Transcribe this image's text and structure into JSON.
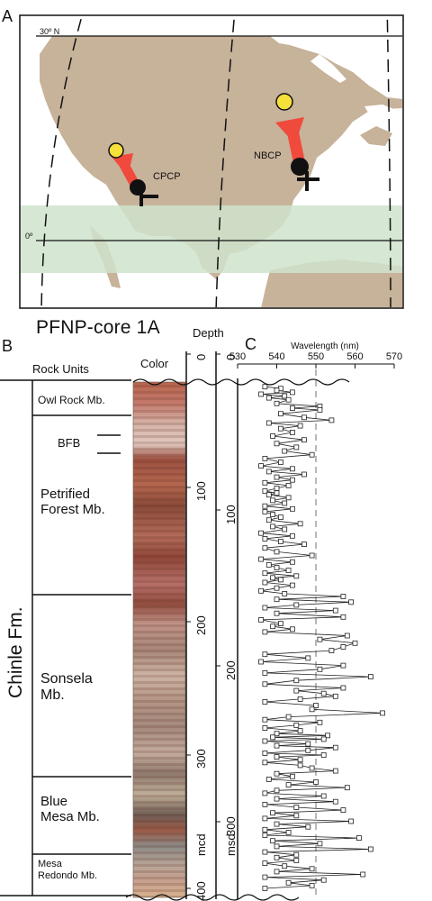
{
  "panel_a": {
    "label": "A",
    "lat_top": "30º N",
    "lat_equator": "0º",
    "sites": [
      {
        "name": "CPCP"
      },
      {
        "name": "NBCP"
      }
    ],
    "colors": {
      "land": "#c7b29a",
      "ocean": "#ffffff",
      "equatorial_band": "#cfe3cc",
      "past_pos": "#111111",
      "present_pos": "#f6e03a",
      "arrow": "#f04a3d"
    }
  },
  "panel_b": {
    "label": "B",
    "title": "PFNP-core 1A",
    "rock_units_header": "Rock Units",
    "color_header": "Color",
    "formation": "Chinle Fm.",
    "depth_header": "Depth",
    "units": [
      {
        "id": "owl-rock",
        "lines": [
          "Owl Rock Mb."
        ]
      },
      {
        "id": "bfb",
        "lines": [
          "BFB"
        ]
      },
      {
        "id": "petrified-forest",
        "lines": [
          "Petrified",
          "Forest Mb."
        ]
      },
      {
        "id": "sonsela",
        "lines": [
          "Sonsela",
          "Mb."
        ]
      },
      {
        "id": "blue-mesa",
        "lines": [
          "Blue",
          "Mesa Mb."
        ]
      },
      {
        "id": "mesa-redondo",
        "lines": [
          "Mesa",
          "Redondo Mb."
        ]
      }
    ],
    "mcd_label": "mcd",
    "msd_label": "msd",
    "mcd_ticks": [
      "0",
      "100",
      "200",
      "300",
      "400"
    ],
    "msd_ticks": [
      "0",
      "100",
      "200",
      "300"
    ]
  },
  "panel_c": {
    "label": "C",
    "chart_data": {
      "type": "line",
      "xlabel": "Wavelength (nm)",
      "xlim": [
        530,
        570
      ],
      "x_ticks": [
        "530",
        "540",
        "550",
        "560",
        "570"
      ],
      "reference_line_x": 550,
      "depth_range_mcd": [
        0,
        400
      ],
      "x": [
        537,
        541,
        540,
        544,
        536,
        542,
        538,
        543,
        540,
        551,
        544,
        551,
        541,
        547,
        554,
        538,
        546,
        541,
        544,
        539,
        547,
        540,
        545,
        542,
        549,
        537,
        541,
        536,
        544,
        538,
        547,
        540,
        544,
        537,
        543,
        540,
        537,
        540,
        538,
        543,
        539,
        542,
        537,
        544,
        537,
        539,
        541,
        538,
        546,
        539,
        542,
        536,
        544,
        537,
        541,
        547,
        537,
        540,
        549,
        536,
        544,
        538,
        540,
        543,
        537,
        545,
        539,
        541,
        537,
        544,
        540,
        536,
        542,
        557,
        540,
        559,
        545,
        537,
        555,
        540,
        557,
        536,
        541,
        539,
        544,
        537,
        558,
        551,
        560,
        557,
        554,
        537,
        548,
        536,
        557,
        551,
        537,
        564,
        545,
        537,
        557,
        545,
        552,
        555,
        546,
        537,
        550,
        549,
        567,
        543,
        537,
        551,
        545,
        537,
        546,
        540,
        553,
        539,
        552,
        537,
        548,
        540,
        555,
        548,
        537,
        552,
        540,
        546,
        537,
        546,
        549,
        555,
        540,
        544,
        538,
        550,
        543,
        558,
        540,
        537,
        552,
        540,
        555,
        537,
        545,
        557,
        539,
        545,
        537,
        559,
        540,
        548,
        537,
        543,
        537,
        561,
        539,
        551,
        540,
        564,
        537,
        545,
        540,
        545,
        537,
        542,
        549,
        540,
        562,
        537,
        552,
        543,
        549,
        537
      ],
      "y": [
        5,
        7,
        9,
        11,
        13,
        15,
        17,
        19,
        23,
        26,
        28,
        30,
        34,
        38,
        41,
        44,
        47,
        50,
        54,
        58,
        62,
        66,
        70,
        74,
        78,
        82,
        86,
        90,
        93,
        96,
        99,
        102,
        105,
        108,
        111,
        114,
        117,
        119,
        121,
        124,
        127,
        130,
        133,
        136,
        139,
        142,
        145,
        148,
        152,
        155,
        158,
        162,
        165,
        168,
        171,
        174,
        178,
        182,
        186,
        190,
        193,
        196,
        199,
        202,
        205,
        208,
        210,
        212,
        215,
        218,
        221,
        224,
        227,
        230,
        233,
        236,
        239,
        242,
        245,
        248,
        252,
        255,
        259,
        262,
        265,
        268,
        272,
        276,
        280,
        284,
        288,
        292,
        296,
        300,
        304,
        308,
        312,
        316,
        320,
        324,
        328,
        331,
        334,
        337,
        340,
        343,
        347,
        351,
        355,
        359,
        362,
        365,
        368,
        371,
        374,
        377,
        379,
        381,
        383,
        385,
        388,
        390,
        392,
        395,
        398,
        400,
        402,
        405,
        408,
        411,
        414,
        417,
        420,
        423,
        426,
        429,
        432,
        435,
        438,
        441,
        444,
        447,
        450,
        453,
        456,
        459,
        462,
        465,
        468,
        471,
        474,
        477,
        480,
        483,
        486,
        489,
        492,
        495,
        498,
        501,
        504,
        507,
        510,
        513,
        516,
        519,
        522,
        525,
        528,
        531,
        534,
        537,
        540,
        543
      ]
    }
  }
}
